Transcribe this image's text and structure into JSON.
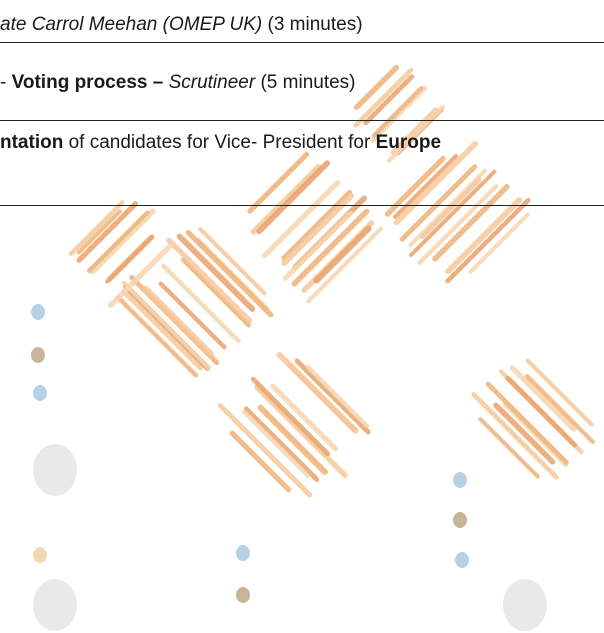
{
  "rows": [
    {
      "segments": [
        {
          "text": "ate Carrol Meehan (OMEP UK)",
          "style": "italic"
        },
        {
          "text": " (3 minutes)",
          "style": "normal"
        }
      ]
    },
    {
      "segments": [
        {
          "text": "- ",
          "style": "normal"
        },
        {
          "text": "Voting process – ",
          "style": "bold"
        },
        {
          "text": "Scrutineer",
          "style": "italic"
        },
        {
          "text": " (5 minutes)",
          "style": "normal"
        }
      ]
    },
    {
      "segments": [
        {
          "text": "ntation",
          "style": "bold"
        },
        {
          "text": " of candidates for Vice- President for ",
          "style": "normal"
        },
        {
          "text": "Europe",
          "style": "bold"
        }
      ]
    }
  ]
}
